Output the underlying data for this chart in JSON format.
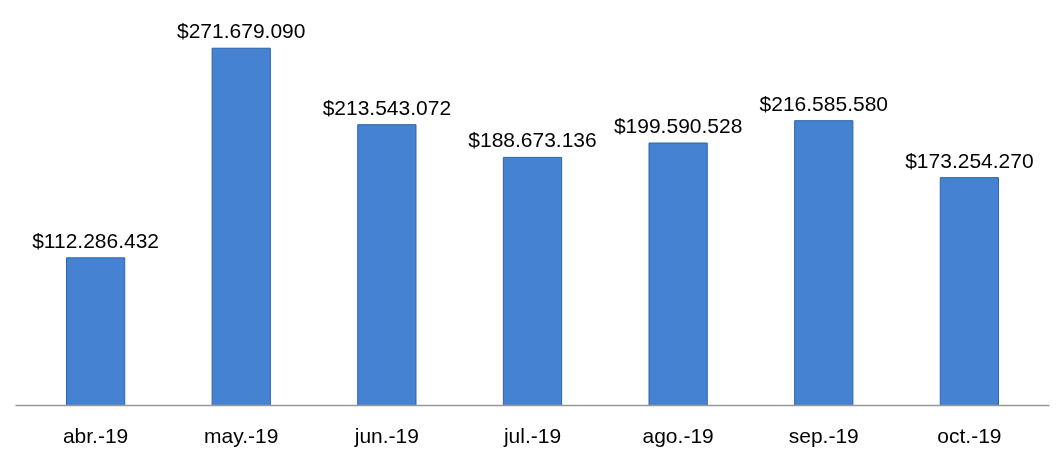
{
  "chart_data": {
    "type": "bar",
    "categories": [
      "abr.-19",
      "may.-19",
      "jun.-19",
      "jul.-19",
      "ago.-19",
      "sep.-19",
      "oct.-19"
    ],
    "values": [
      112286432,
      271679090,
      213543072,
      188673136,
      199590528,
      216585580,
      173254270
    ],
    "value_labels": [
      "$112.286.432",
      "$271.679.090",
      "$213.543.072",
      "$188.673.136",
      "$199.590.528",
      "$216.585.580",
      "$173.254.270"
    ],
    "color": "#4682d2"
  }
}
